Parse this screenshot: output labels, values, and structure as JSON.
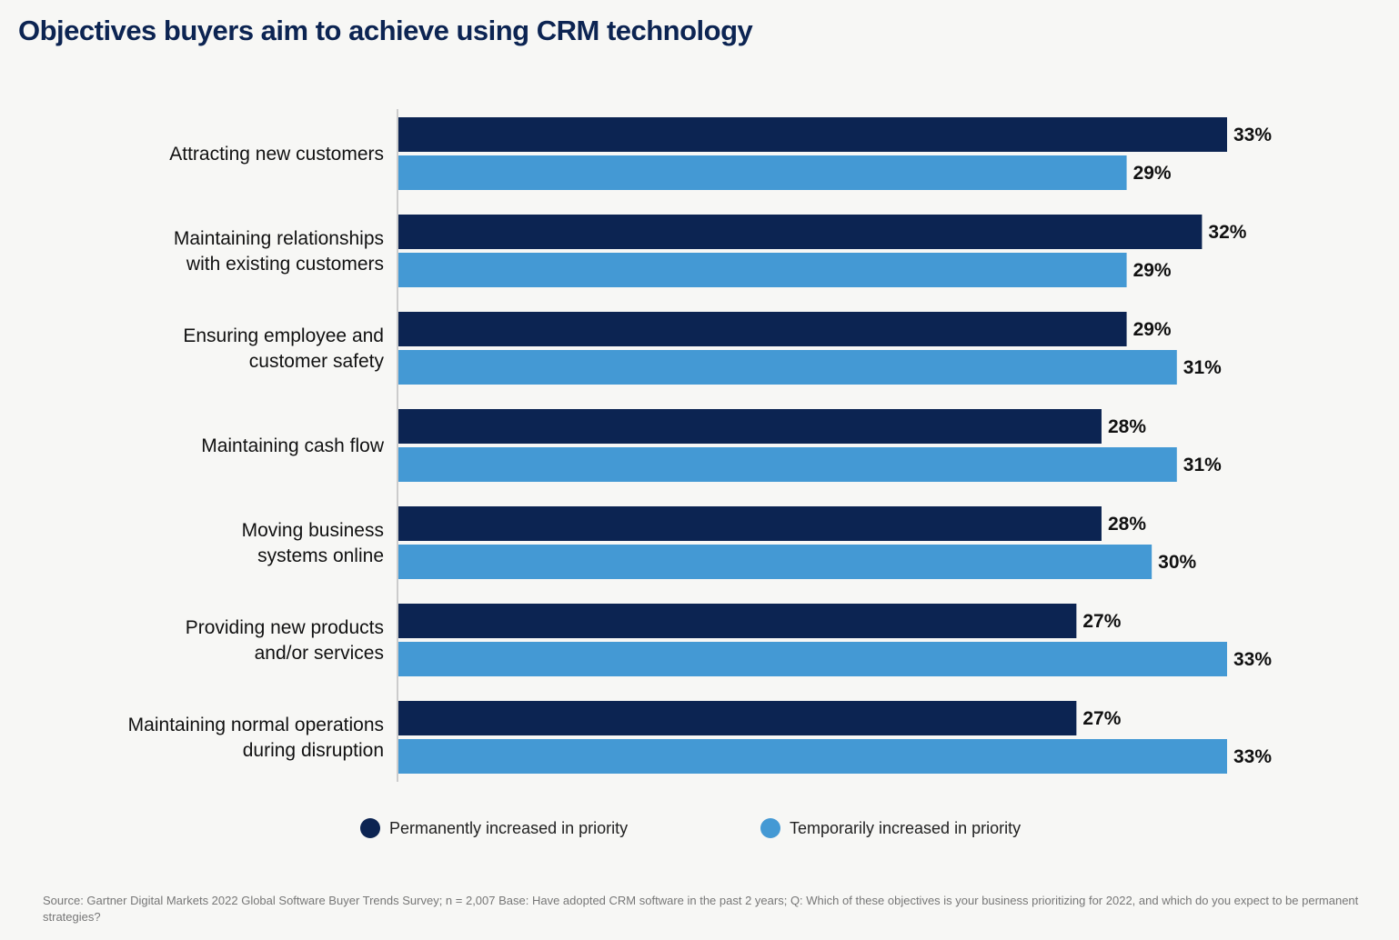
{
  "chart_data": {
    "type": "bar",
    "orientation": "horizontal",
    "title": "Objectives buyers aim to achieve using CRM technology",
    "categories": [
      [
        "Attracting new customers"
      ],
      [
        "Maintaining relationships",
        "with existing customers"
      ],
      [
        "Ensuring employee and",
        "customer safety"
      ],
      [
        "Maintaining cash flow"
      ],
      [
        "Moving business",
        "systems online"
      ],
      [
        "Providing new products",
        "and/or services"
      ],
      [
        "Maintaining normal operations",
        "during disruption"
      ]
    ],
    "series": [
      {
        "name": "Permanently increased in priority",
        "color": "#0c2452",
        "values": [
          33,
          32,
          29,
          28,
          28,
          27,
          27
        ]
      },
      {
        "name": "Temporarily increased in priority",
        "color": "#4499d4",
        "values": [
          29,
          29,
          31,
          31,
          30,
          33,
          33
        ]
      }
    ],
    "value_suffix": "%",
    "xlim": [
      0,
      33
    ],
    "grid": false,
    "legend_placement": "bottom"
  },
  "source": "Source: Gartner Digital Markets 2022 Global Software Buyer Trends Survey; n = 2,007 Base: Have adopted CRM software in the past 2 years; Q: Which of these objectives is your business prioritizing for 2022, and which do you expect to be permanent strategies?"
}
